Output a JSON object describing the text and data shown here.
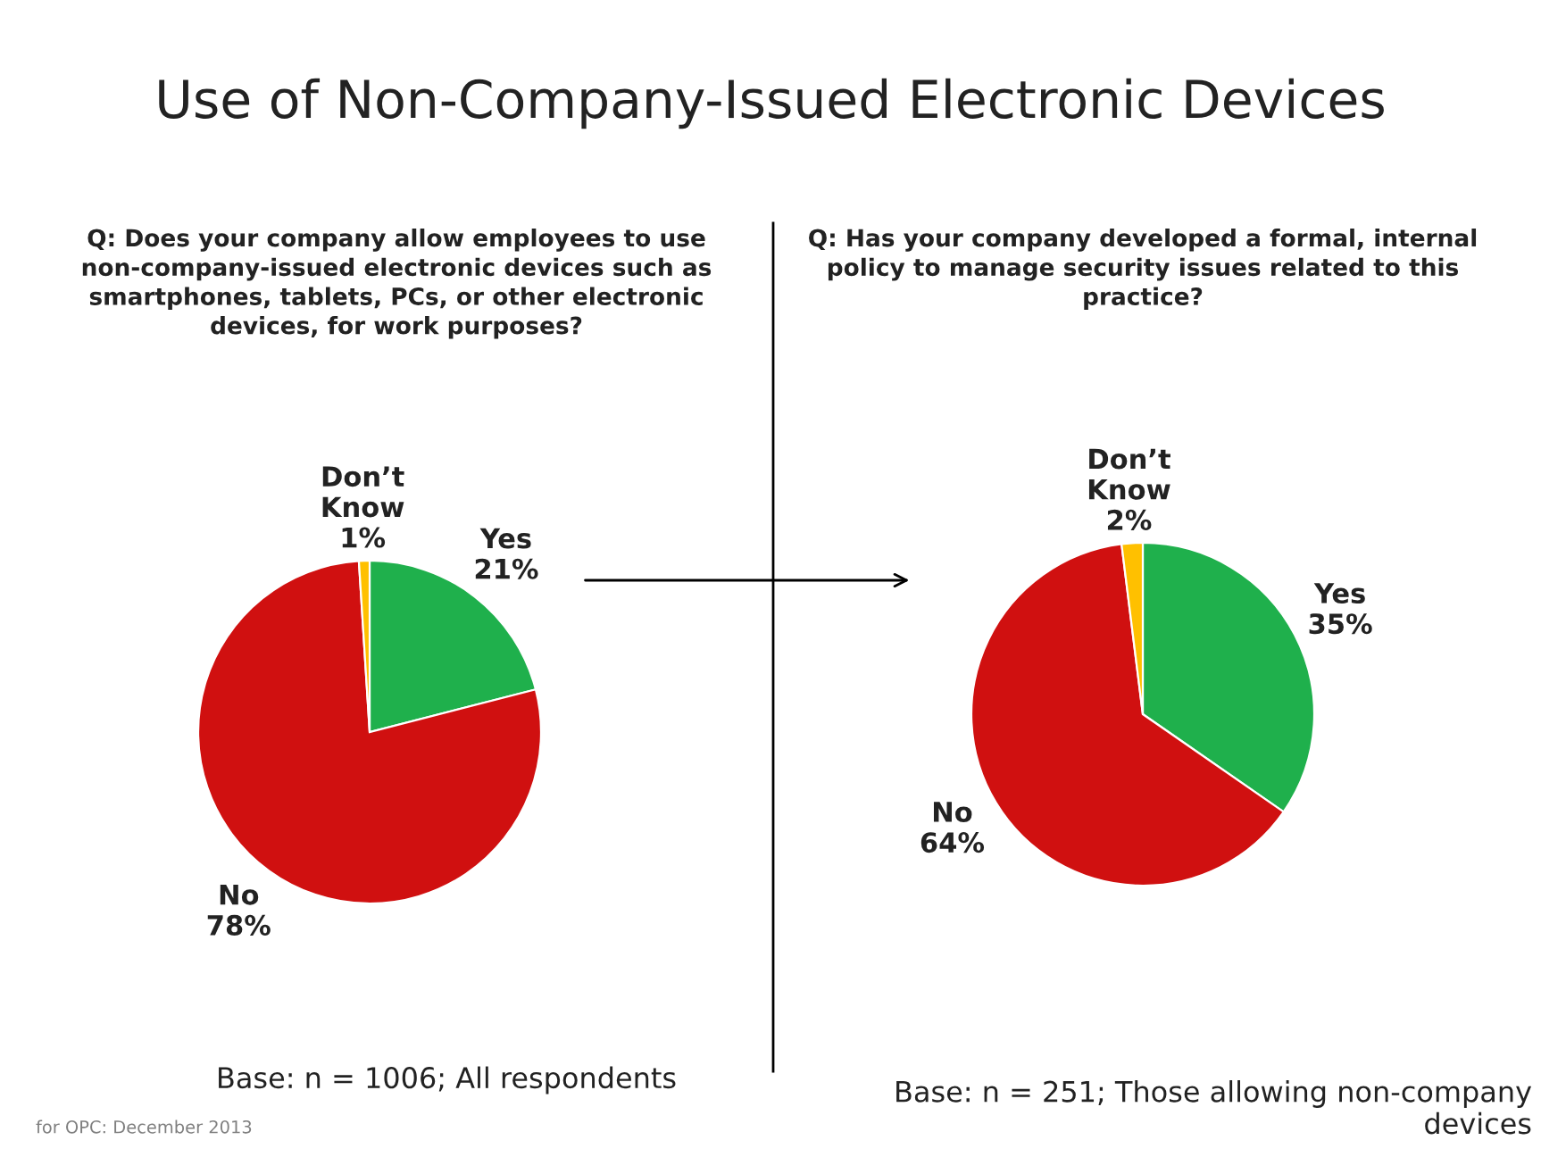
{
  "chart_data": [
    {
      "type": "pie",
      "title": "Use of Non-Company-Issued Electronic Devices",
      "subtitle": "Q: Does your company allow employees to use\nnon-company-issued electronic devices such as\nsmartphones, tablets, PCs, or other electronic\ndevices, for work purposes?",
      "categories": [
        "Yes",
        "No",
        "Don’t Know"
      ],
      "values": [
        21,
        78,
        1
      ],
      "value_labels": [
        "21%",
        "78%",
        "1%"
      ],
      "colors": [
        "#1fb04c",
        "#d01010",
        "#ffc000"
      ],
      "annotations": [
        "Base: n = 1006; All respondents",
        "for OPC: December 2013"
      ]
    },
    {
      "type": "pie",
      "subtitle": "Q: Has your company developed a formal, internal\npolicy to manage security issues related to this\npractice?",
      "categories": [
        "Yes",
        "No",
        "Don’t Know"
      ],
      "values": [
        35,
        64,
        2
      ],
      "value_labels": [
        "35%",
        "64%",
        "2%"
      ],
      "colors": [
        "#1fb04c",
        "#d01010",
        "#ffc000"
      ],
      "annotations": [
        "Base: n = 251; Those allowing non-company\ndevices"
      ]
    }
  ]
}
